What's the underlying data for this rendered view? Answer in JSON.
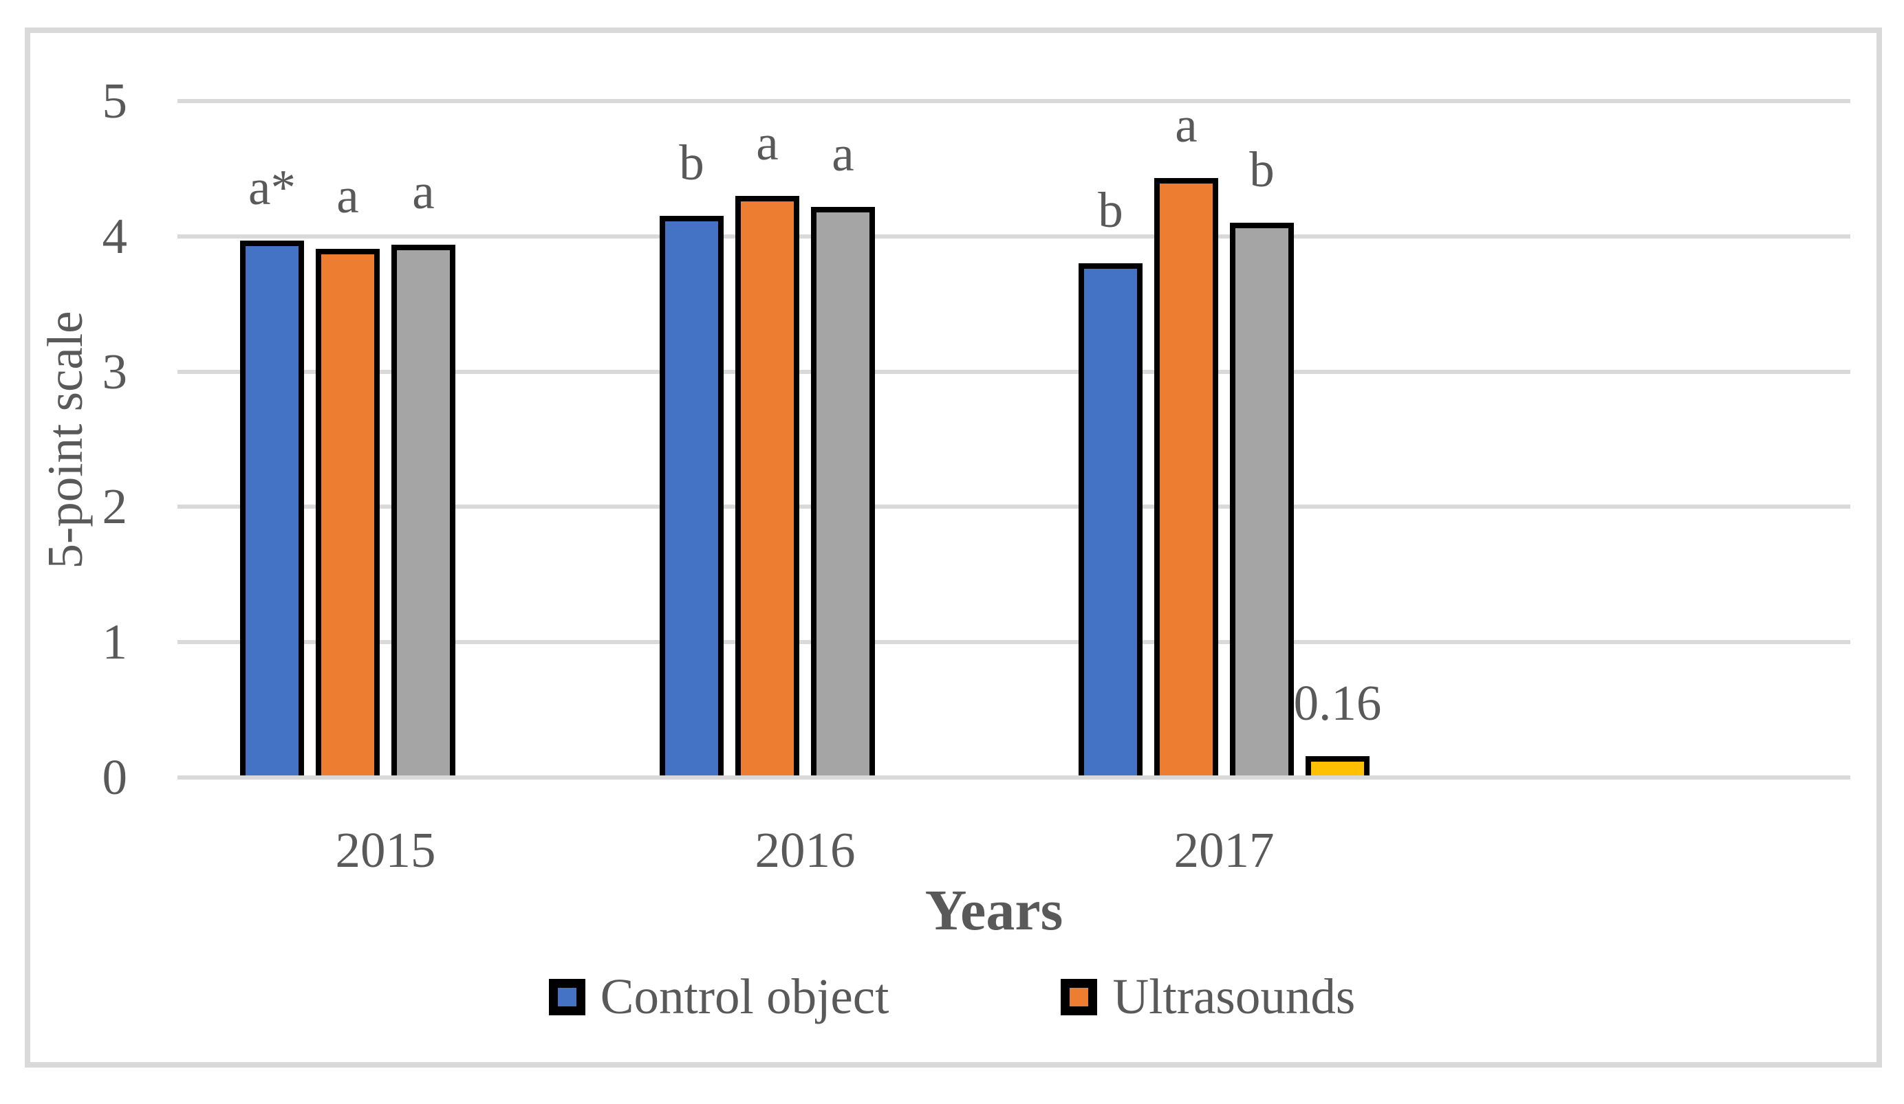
{
  "chart_data": {
    "type": "bar",
    "title": "",
    "xlabel": "Years",
    "ylabel": "5-point scale",
    "ylim": [
      0,
      5
    ],
    "yticks": [
      0,
      1,
      2,
      3,
      4,
      5
    ],
    "categories": [
      "2015",
      "2016",
      "2017"
    ],
    "series": [
      {
        "name": "Control object",
        "color": "#4472C4",
        "in_legend": true,
        "values": [
          3.97,
          4.15,
          3.8
        ],
        "labels": [
          "a*",
          "b",
          "b"
        ]
      },
      {
        "name": "Ultrasounds",
        "color": "#ED7D31",
        "in_legend": true,
        "values": [
          3.91,
          4.3,
          4.43
        ],
        "labels": [
          "a",
          "a",
          "a"
        ]
      },
      {
        "name": "",
        "color": "#A5A5A5",
        "in_legend": false,
        "values": [
          3.94,
          4.22,
          4.1
        ],
        "labels": [
          "a",
          "a",
          "b"
        ]
      },
      {
        "name": "",
        "color": "#FFC000",
        "in_legend": false,
        "values": [
          null,
          null,
          0.16
        ],
        "labels": [
          "",
          "",
          "0.16"
        ]
      }
    ],
    "grid": true,
    "legend_position": "bottom",
    "bar_border_color": "#000000",
    "gridline_color": "#D9D9D9",
    "frame_color": "#D9D9D9",
    "text_color": "#595959"
  }
}
